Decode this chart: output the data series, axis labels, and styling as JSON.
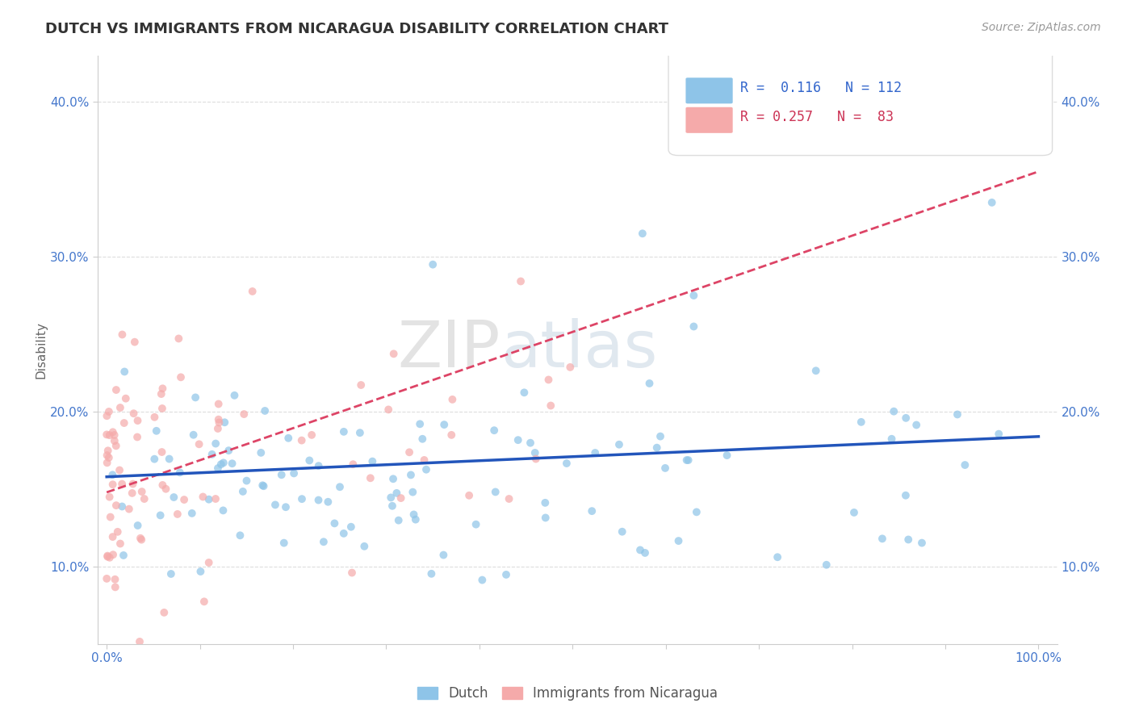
{
  "title": "DUTCH VS IMMIGRANTS FROM NICARAGUA DISABILITY CORRELATION CHART",
  "source": "Source: ZipAtlas.com",
  "ylabel": "Disability",
  "xlim": [
    -0.01,
    1.02
  ],
  "ylim": [
    0.05,
    0.43
  ],
  "yticks": [
    0.1,
    0.2,
    0.3,
    0.4
  ],
  "ytick_labels": [
    "10.0%",
    "20.0%",
    "30.0%",
    "40.0%"
  ],
  "xtick_labels_show": [
    "0.0%",
    "100.0%"
  ],
  "dutch_R": 0.116,
  "dutch_N": 112,
  "nicaragua_R": 0.257,
  "nicaragua_N": 83,
  "dutch_color": "#8EC4E8",
  "nicaragua_color": "#F5AAAA",
  "dutch_line_color": "#2255BB",
  "nicaragua_line_color": "#DD4466",
  "watermark_color": "#DDDDDD",
  "legend_R_color_dutch": "#3366CC",
  "legend_R_color_nic": "#CC3355",
  "legend_N_color": "#CC2222",
  "background": "#FFFFFF"
}
